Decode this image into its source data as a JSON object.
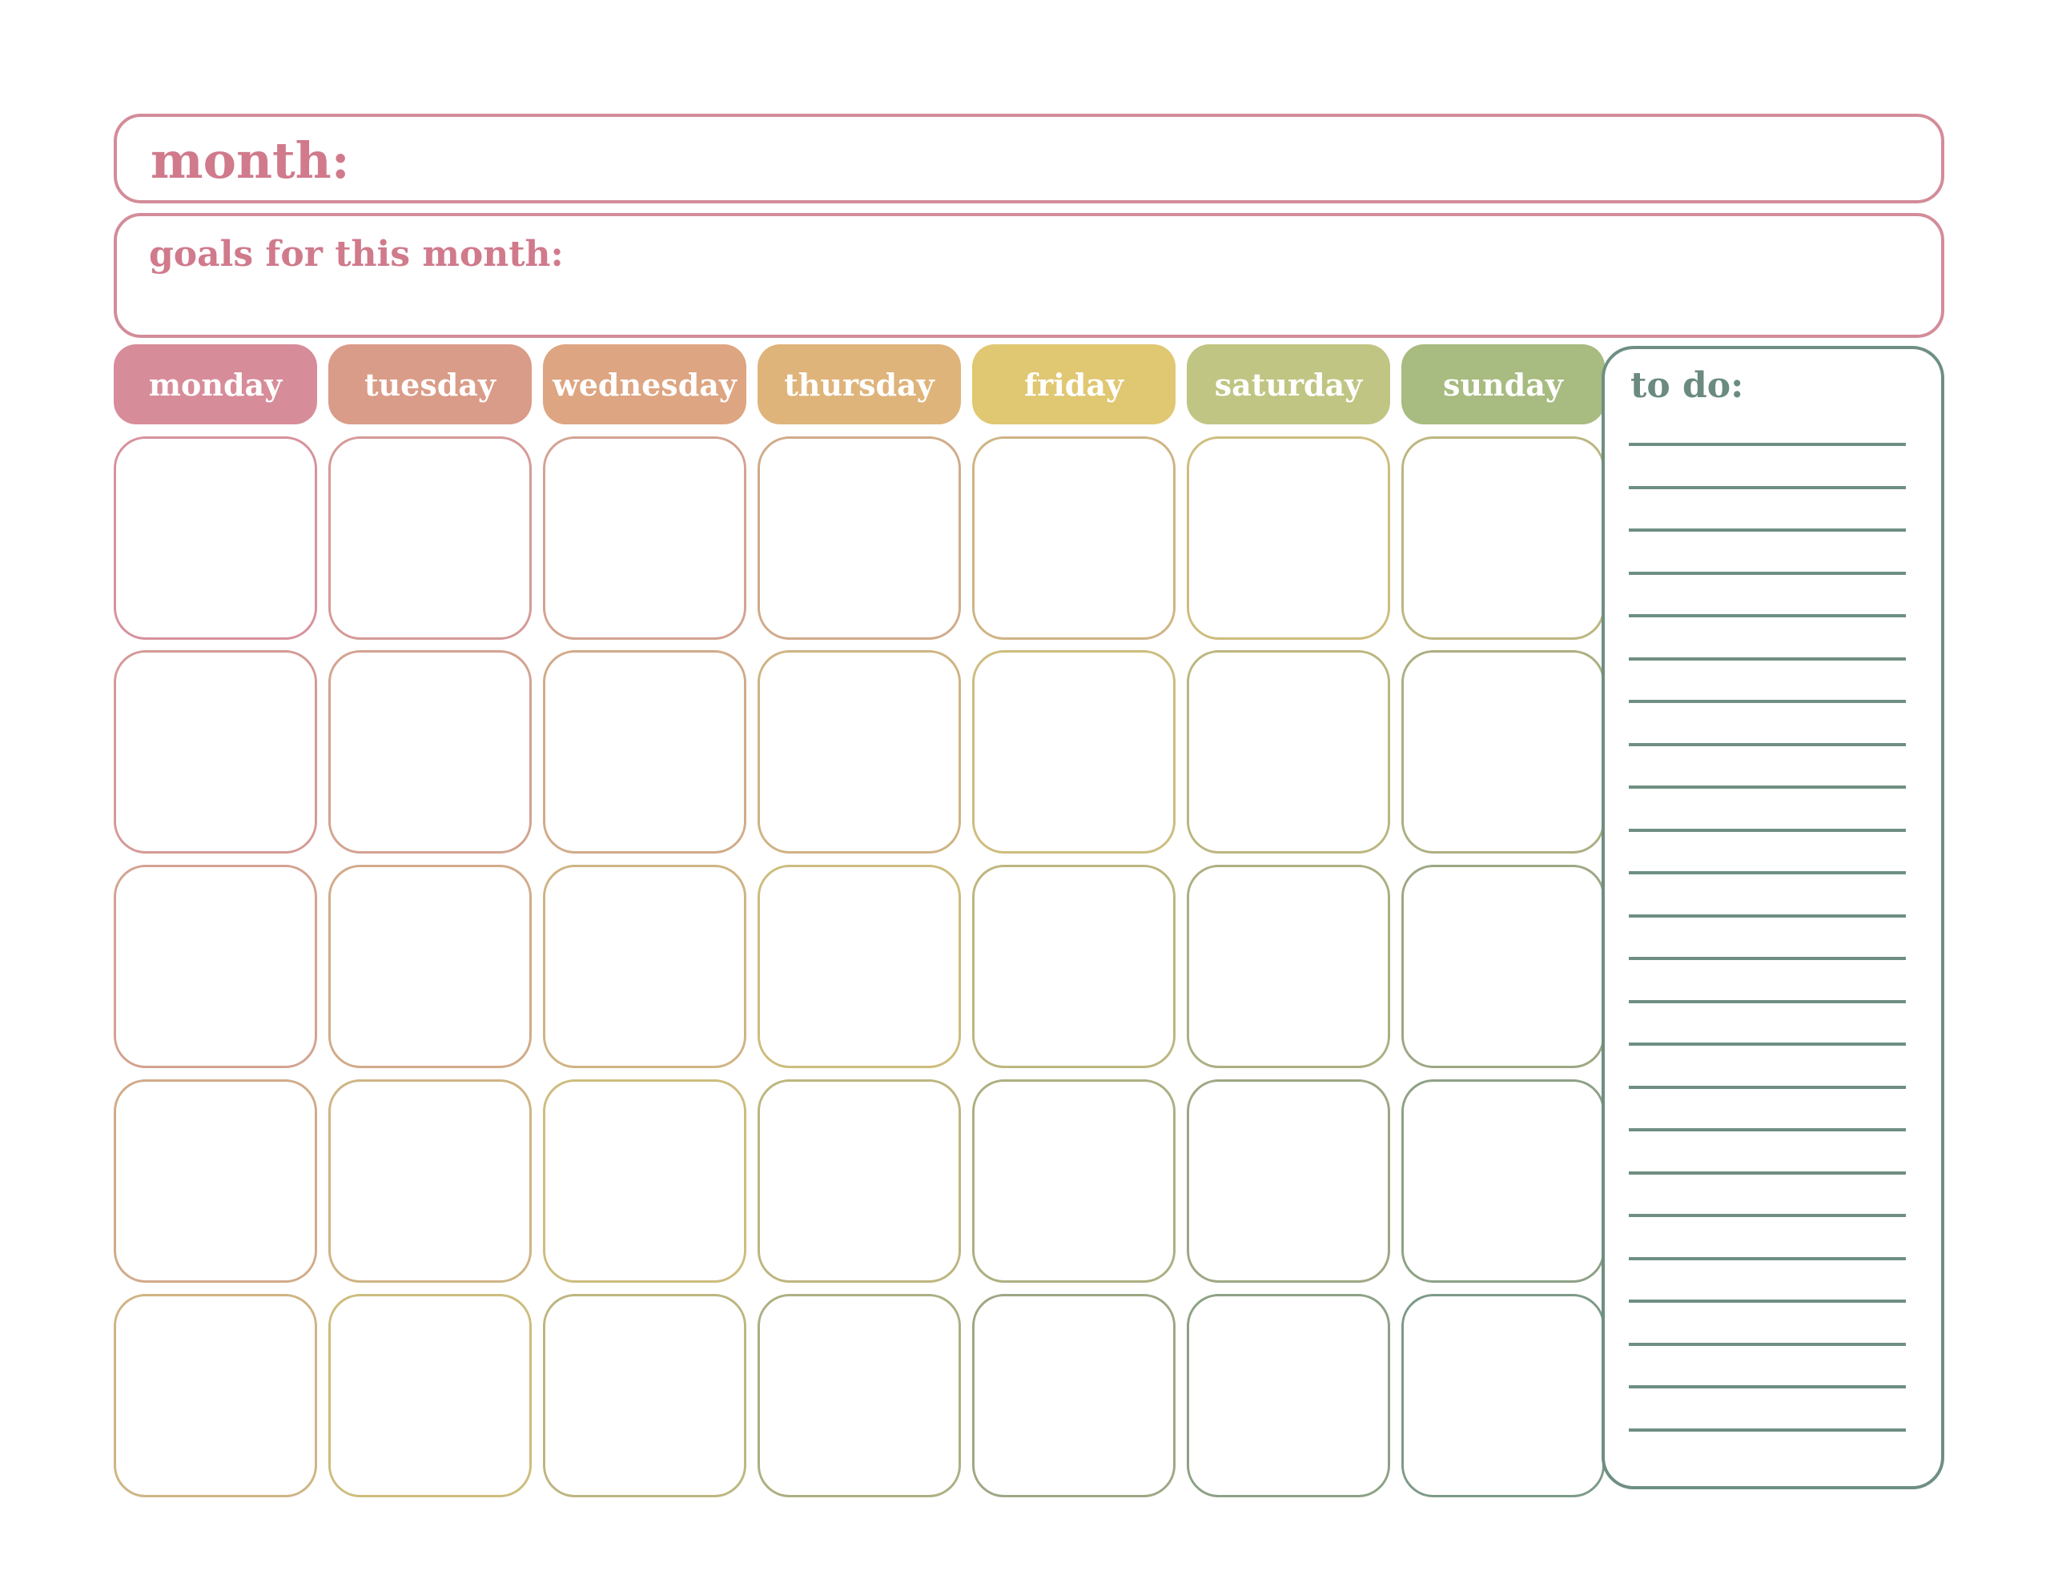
{
  "month": {
    "label": "month:"
  },
  "goals": {
    "label": "goals for this month:"
  },
  "days": [
    {
      "label": "monday",
      "color": "#d78c99"
    },
    {
      "label": "tuesday",
      "color": "#d99c88"
    },
    {
      "label": "wednesday",
      "color": "#dda582"
    },
    {
      "label": "thursday",
      "color": "#deb47b"
    },
    {
      "label": "friday",
      "color": "#e0c772"
    },
    {
      "label": "saturday",
      "color": "#c0c583"
    },
    {
      "label": "sunday",
      "color": "#a8bb80"
    }
  ],
  "todo": {
    "label": "to do:",
    "line_count": 24
  },
  "grid": {
    "rows": 5,
    "cols": 7
  }
}
